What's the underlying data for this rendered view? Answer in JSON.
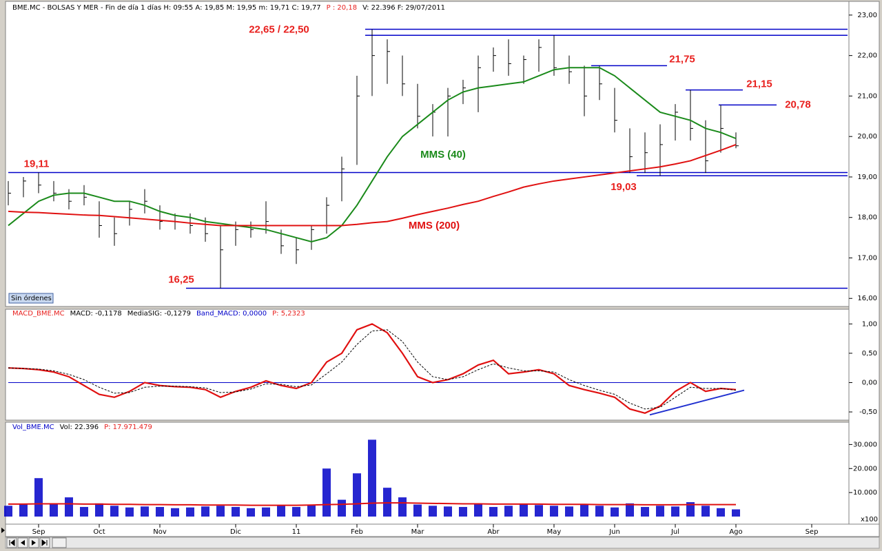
{
  "chart_data": [
    {
      "type": "ohlc",
      "header": [
        {
          "text": "BME.MC - BOLSAS Y MER - Fin de día 1 días  H: 09:55  A: 19,85  M: 19,95  m: 19,71  C: 19,77",
          "color": "#000000"
        },
        {
          "text": "P : 20,18",
          "color": "#e8201e"
        },
        {
          "text": "V: 22.396  F: 29/07/2011",
          "color": "#000000"
        }
      ],
      "badge": "Sin órdenes",
      "categories": [
        null,
        null,
        "Sep",
        null,
        null,
        null,
        "Oct",
        null,
        null,
        null,
        "Nov",
        null,
        null,
        null,
        null,
        "Dic",
        null,
        null,
        null,
        "11",
        null,
        null,
        null,
        "Feb",
        null,
        null,
        null,
        "Mar",
        null,
        null,
        null,
        null,
        "Abr",
        null,
        null,
        null,
        "May",
        null,
        null,
        null,
        "Jun",
        null,
        null,
        null,
        "Jul",
        null,
        null,
        null,
        "Ago",
        null,
        null,
        null,
        null,
        "Sep",
        null,
        null
      ],
      "high": [
        18.9,
        19.0,
        19.11,
        18.9,
        18.7,
        18.8,
        18.4,
        18.0,
        18.4,
        18.7,
        18.3,
        18.1,
        18.1,
        18.0,
        17.8,
        17.9,
        17.9,
        18.4,
        17.7,
        17.5,
        17.8,
        18.5,
        19.5,
        21.5,
        22.65,
        22.4,
        22.0,
        21.3,
        20.8,
        21.2,
        21.4,
        22.0,
        22.2,
        22.4,
        22.0,
        22.4,
        22.5,
        22.0,
        21.75,
        21.75,
        21.2,
        20.2,
        20.1,
        20.3,
        20.8,
        21.15,
        20.4,
        20.78,
        20.1,
        null,
        null,
        null,
        null,
        null,
        null,
        null
      ],
      "low": [
        18.3,
        18.5,
        18.6,
        18.4,
        18.2,
        18.3,
        17.5,
        17.3,
        17.8,
        18.1,
        17.7,
        17.7,
        17.6,
        17.4,
        16.25,
        17.3,
        17.5,
        17.6,
        17.1,
        16.85,
        17.2,
        17.6,
        18.4,
        19.3,
        21.0,
        21.3,
        21.0,
        20.2,
        20.0,
        20.0,
        20.8,
        20.6,
        21.6,
        21.5,
        21.3,
        21.6,
        21.5,
        21.3,
        20.5,
        20.9,
        20.1,
        19.1,
        19.1,
        19.03,
        19.9,
        19.9,
        19.1,
        19.6,
        19.71,
        null,
        null,
        null,
        null,
        null,
        null,
        null
      ],
      "close": [
        18.6,
        18.9,
        18.8,
        18.6,
        18.4,
        18.5,
        17.8,
        17.6,
        18.2,
        18.4,
        17.9,
        17.9,
        17.8,
        17.6,
        17.2,
        17.7,
        17.7,
        17.9,
        17.3,
        17.2,
        17.7,
        18.3,
        19.2,
        21.0,
        22.0,
        22.1,
        21.3,
        20.5,
        20.6,
        21.0,
        21.2,
        21.7,
        22.0,
        21.8,
        21.9,
        22.2,
        21.7,
        21.6,
        21.0,
        21.3,
        20.4,
        19.5,
        19.6,
        19.8,
        20.6,
        20.2,
        19.4,
        20.2,
        19.77,
        null,
        null,
        null,
        null,
        null,
        null,
        null
      ],
      "bar_color": "#000000",
      "series": [
        {
          "name": "MMS (40)",
          "color": "#1a8a1a",
          "values": [
            17.8,
            18.1,
            18.4,
            18.55,
            18.6,
            18.6,
            18.5,
            18.4,
            18.4,
            18.3,
            18.15,
            18.05,
            18.0,
            17.9,
            17.85,
            17.8,
            17.75,
            17.7,
            17.6,
            17.5,
            17.4,
            17.5,
            17.8,
            18.3,
            18.9,
            19.5,
            20.0,
            20.3,
            20.6,
            20.9,
            21.1,
            21.2,
            21.25,
            21.3,
            21.35,
            21.5,
            21.65,
            21.7,
            21.7,
            21.7,
            21.5,
            21.2,
            20.9,
            20.6,
            20.5,
            20.4,
            20.2,
            20.1,
            19.95,
            null,
            null,
            null,
            null,
            null,
            null,
            null
          ]
        },
        {
          "name": "MMS (200)",
          "color": "#e01010",
          "values": [
            18.15,
            18.13,
            18.12,
            18.1,
            18.08,
            18.06,
            18.05,
            18.02,
            17.99,
            17.96,
            17.93,
            17.9,
            17.86,
            17.83,
            17.8,
            17.8,
            17.8,
            17.8,
            17.8,
            17.8,
            17.8,
            17.8,
            17.8,
            17.83,
            17.87,
            17.9,
            17.98,
            18.07,
            18.15,
            18.23,
            18.32,
            18.4,
            18.52,
            18.63,
            18.75,
            18.83,
            18.9,
            18.95,
            19.0,
            19.05,
            19.1,
            19.15,
            19.2,
            19.25,
            19.32,
            19.4,
            19.53,
            19.66,
            19.8,
            null,
            null,
            null,
            null,
            null,
            null,
            null
          ]
        }
      ],
      "annotation_color": "#e8201e",
      "level_color": "#0000c8",
      "annotations": [
        {
          "label": "22,65 / 22,50",
          "values": [
            22.65,
            22.5
          ]
        },
        {
          "label": "21,75",
          "values": [
            21.75
          ]
        },
        {
          "label": "21,15",
          "values": [
            21.15
          ]
        },
        {
          "label": "20,78",
          "values": [
            20.78
          ]
        },
        {
          "label": "19,11",
          "values": [
            19.11
          ]
        },
        {
          "label": "19,03",
          "values": [
            19.03
          ]
        },
        {
          "label": "16,25",
          "values": [
            16.25
          ]
        }
      ],
      "ylim": [
        15.8,
        23.1
      ],
      "yticks": [
        {
          "value": 16,
          "label": "16,00"
        },
        {
          "value": 17,
          "label": "17,00"
        },
        {
          "value": 18,
          "label": "18,00"
        },
        {
          "value": 19,
          "label": "19,00"
        },
        {
          "value": 20,
          "label": "20,00"
        },
        {
          "value": 21,
          "label": "21,00"
        },
        {
          "value": 22,
          "label": "22,00"
        },
        {
          "value": 23,
          "label": "23,00"
        }
      ]
    },
    {
      "type": "line",
      "header": [
        {
          "text": "MACD_BME.MC",
          "color": "#e8201e"
        },
        {
          "text": "MACD: -0,1178",
          "color": "#000000"
        },
        {
          "text": "MediaSIG: -0,1279",
          "color": "#000000"
        },
        {
          "text": "Band_MACD: 0,0000",
          "color": "#0000c8"
        },
        {
          "text": "P: 5,2323",
          "color": "#e8201e"
        }
      ],
      "series": [
        {
          "name": "MACD",
          "color": "#e01010",
          "values": [
            0.25,
            0.24,
            0.22,
            0.18,
            0.1,
            -0.05,
            -0.2,
            -0.25,
            -0.15,
            0.0,
            -0.05,
            -0.07,
            -0.08,
            -0.12,
            -0.25,
            -0.15,
            -0.08,
            0.03,
            -0.05,
            -0.1,
            0.0,
            0.35,
            0.5,
            0.9,
            1.0,
            0.85,
            0.5,
            0.1,
            0.0,
            0.05,
            0.15,
            0.3,
            0.38,
            0.15,
            0.18,
            0.22,
            0.15,
            -0.05,
            -0.12,
            -0.18,
            -0.25,
            -0.45,
            -0.52,
            -0.4,
            -0.15,
            0.0,
            -0.15,
            -0.1,
            -0.12,
            null,
            null,
            null,
            null,
            null,
            null,
            null
          ]
        },
        {
          "name": "MediaSIG",
          "color": "#000000",
          "values": [
            0.25,
            0.24,
            0.23,
            0.2,
            0.14,
            0.05,
            -0.08,
            -0.18,
            -0.17,
            -0.08,
            -0.06,
            -0.06,
            -0.07,
            -0.09,
            -0.17,
            -0.16,
            -0.11,
            -0.02,
            -0.03,
            -0.07,
            -0.04,
            0.15,
            0.35,
            0.65,
            0.88,
            0.9,
            0.7,
            0.35,
            0.1,
            0.05,
            0.1,
            0.22,
            0.32,
            0.25,
            0.2,
            0.2,
            0.18,
            0.05,
            -0.05,
            -0.13,
            -0.2,
            -0.35,
            -0.45,
            -0.42,
            -0.25,
            -0.08,
            -0.1,
            -0.1,
            -0.13,
            null,
            null,
            null,
            null,
            null,
            null,
            null
          ]
        }
      ],
      "band": 0,
      "band_color": "#0000c8",
      "trend": [
        -0.55,
        -0.13
      ],
      "trend_color": "#2030d0",
      "ylim": [
        -0.64,
        1.25
      ],
      "yticks": [
        {
          "value": 1,
          "label": "1,00"
        },
        {
          "value": 0.5,
          "label": "0,50"
        },
        {
          "value": 0,
          "label": "0,00"
        },
        {
          "value": -0.5,
          "label": "-0,50"
        }
      ]
    },
    {
      "type": "bar",
      "header": [
        {
          "text": "Vol_BME.MC",
          "color": "#0000c8"
        },
        {
          "text": "Vol: 22.396",
          "color": "#000000"
        },
        {
          "text": "P: 17.971.479",
          "color": "#e8201e"
        }
      ],
      "color": "#0000c8",
      "values": [
        4500,
        5000,
        16000,
        5500,
        8000,
        4000,
        5500,
        4500,
        3800,
        4200,
        4000,
        3500,
        3800,
        4200,
        4500,
        4000,
        3500,
        3800,
        4500,
        4000,
        5000,
        20000,
        7000,
        18000,
        32000,
        12000,
        8000,
        5000,
        4500,
        4200,
        4000,
        5500,
        4000,
        4500,
        5000,
        4800,
        4500,
        4200,
        5000,
        4500,
        3800,
        5500,
        4000,
        4500,
        4200,
        6000,
        4500,
        3500,
        3000,
        null,
        null,
        null,
        null,
        null,
        null,
        null
      ],
      "series": [
        {
          "color": "#e01010",
          "values": [
            5200,
            5200,
            5300,
            5300,
            5300,
            5200,
            5200,
            5100,
            5100,
            5000,
            5000,
            4900,
            4900,
            4800,
            4800,
            4800,
            4700,
            4700,
            4700,
            4700,
            4800,
            5000,
            5100,
            5300,
            5600,
            5700,
            5700,
            5600,
            5500,
            5400,
            5300,
            5300,
            5200,
            5200,
            5200,
            5200,
            5100,
            5100,
            5100,
            5000,
            5000,
            5000,
            4900,
            4900,
            4900,
            5000,
            5000,
            5000,
            5000,
            null,
            null,
            null,
            null,
            null,
            null,
            null
          ]
        }
      ],
      "scale_note": "x100",
      "ylim": [
        0,
        39000
      ],
      "yticks": [
        {
          "value": 10000,
          "label": "10.000"
        },
        {
          "value": 20000,
          "label": "20.000"
        },
        {
          "value": 30000,
          "label": "30.000"
        }
      ]
    }
  ]
}
